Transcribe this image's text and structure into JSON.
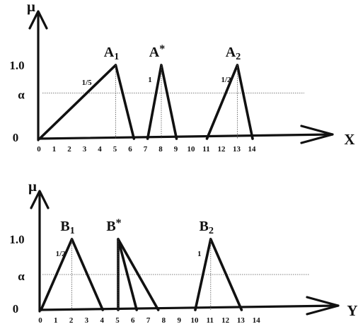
{
  "panels": [
    {
      "id": "top",
      "y_axis_label": "μ",
      "x_axis_label": "X",
      "level_labels": {
        "one": "1.0",
        "alpha": "α",
        "zero": "0"
      },
      "x_ticks": [
        "0",
        "1",
        "2",
        "3",
        "4",
        "5",
        "6",
        "7",
        "8",
        "9",
        "10",
        "11",
        "12",
        "13",
        "14"
      ],
      "alpha_value": 0.62,
      "sets": [
        {
          "name": "A",
          "sub": "1",
          "sup": "",
          "a": 0,
          "peak": 5,
          "c": 6.2,
          "slope_label": "1/5"
        },
        {
          "name": "A",
          "sub": "",
          "sup": "*",
          "a": 7.1,
          "peak": 8,
          "c": 9,
          "slope_label": "1"
        },
        {
          "name": "A",
          "sub": "2",
          "sup": "",
          "a": 11,
          "peak": 13,
          "c": 14,
          "slope_label": "1/2"
        }
      ]
    },
    {
      "id": "bottom",
      "y_axis_label": "μ",
      "x_axis_label": "Y",
      "level_labels": {
        "one": "1.0",
        "alpha": "α",
        "zero": "0"
      },
      "x_ticks": [
        "0",
        "1",
        "2",
        "3",
        "4",
        "5",
        "6",
        "7",
        "8",
        "9",
        "10",
        "11",
        "12",
        "13",
        "14"
      ],
      "alpha_value": 0.5,
      "sets": [
        {
          "name": "B",
          "sub": "1",
          "sup": "",
          "a": 0,
          "peak": 2,
          "c": 4,
          "slope_label": "1/2"
        },
        {
          "name": "B",
          "sub": "",
          "sup": "*",
          "a": 5,
          "peak": 5,
          "c": 7.6,
          "slope_label": "",
          "inner_c": 6.2
        },
        {
          "name": "B",
          "sub": "2",
          "sup": "",
          "a": 10,
          "peak": 11,
          "c": 13,
          "slope_label": "1"
        }
      ]
    }
  ]
}
